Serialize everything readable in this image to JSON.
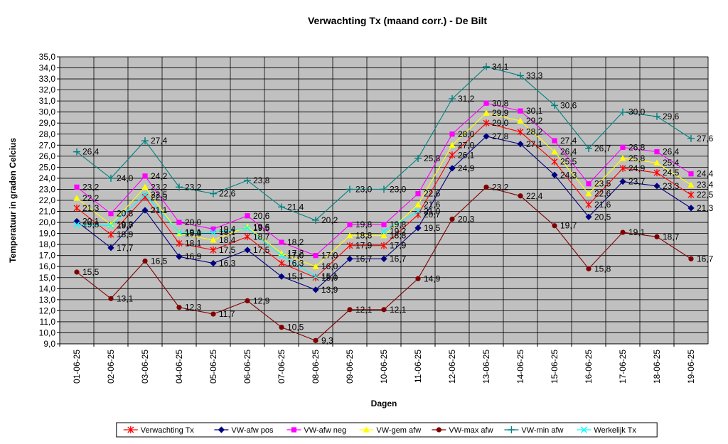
{
  "chart_data": {
    "type": "line",
    "title": "Verwachting Tx (maand corr.) - De Bilt",
    "xlabel": "Dagen",
    "ylabel": "Temperatuur in graden Celcius",
    "ylim": [
      9.0,
      35.0
    ],
    "ytick_step": 1.0,
    "grid": true,
    "plot_background": "#c0c0c0",
    "legend_position": "bottom",
    "categories": [
      "01-06-25",
      "02-06-25",
      "03-06-25",
      "04-06-25",
      "05-06-25",
      "06-06-25",
      "07-06-25",
      "08-06-25",
      "09-06-25",
      "10-06-25",
      "11-06-25",
      "12-06-25",
      "13-06-25",
      "14-06-25",
      "15-06-25",
      "16-06-25",
      "17-06-25",
      "18-06-25",
      "19-06-25"
    ],
    "series": [
      {
        "name": "Verwachting Tx",
        "color": "#ff0000",
        "marker": "star",
        "values": [
          21.3,
          18.9,
          22.3,
          18.1,
          17.5,
          18.7,
          16.3,
          15.0,
          17.9,
          17.9,
          20.7,
          26.1,
          29.0,
          28.2,
          25.5,
          21.6,
          24.9,
          24.5,
          22.5
        ]
      },
      {
        "name": "VW-afw pos",
        "color": "#000080",
        "marker": "diamond",
        "values": [
          20.1,
          17.7,
          21.1,
          16.9,
          16.3,
          17.5,
          15.1,
          13.9,
          16.7,
          16.7,
          19.5,
          24.9,
          27.8,
          27.1,
          24.3,
          20.5,
          23.7,
          23.3,
          21.3
        ]
      },
      {
        "name": "VW-afw neg",
        "color": "#ff00ff",
        "marker": "square",
        "values": [
          23.2,
          20.8,
          24.2,
          20.0,
          19.4,
          20.6,
          18.2,
          17.0,
          19.8,
          19.8,
          22.6,
          28.0,
          30.8,
          30.1,
          27.4,
          23.5,
          26.8,
          26.4,
          24.4
        ]
      },
      {
        "name": "VW-gem afw",
        "color": "#ffff00",
        "marker": "triangle",
        "values": [
          22.2,
          19.8,
          23.2,
          19.0,
          18.4,
          19.6,
          17.2,
          16.0,
          18.8,
          18.8,
          21.6,
          27.0,
          29.9,
          29.2,
          26.4,
          22.6,
          25.8,
          25.4,
          23.4
        ]
      },
      {
        "name": "VW-max afw",
        "color": "#800000",
        "marker": "circle",
        "values": [
          15.5,
          13.1,
          16.5,
          12.3,
          11.7,
          12.9,
          10.5,
          9.3,
          12.1,
          12.1,
          14.9,
          20.3,
          23.2,
          22.4,
          19.7,
          15.8,
          19.1,
          18.7,
          16.7
        ]
      },
      {
        "name": "VW-min afw",
        "color": "#008080",
        "marker": "plus",
        "values": [
          26.4,
          24.0,
          27.4,
          23.2,
          22.6,
          23.8,
          21.4,
          20.2,
          23.0,
          23.0,
          25.8,
          31.2,
          34.1,
          33.3,
          30.6,
          26.7,
          30.0,
          29.6,
          27.6
        ]
      },
      {
        "name": "Werkelijk Tx",
        "color": "#00ffff",
        "marker": "x",
        "values": [
          19.8,
          19.7,
          22.5,
          19.1,
          19.1,
          19.5,
          17.0,
          15.1,
          null,
          19.2,
          21.0,
          null,
          null,
          null,
          null,
          null,
          null,
          null,
          null
        ],
        "labels": [
          "19,8",
          "19,7",
          "22,5",
          "19,1",
          "19,1",
          "19,5",
          "17,0",
          "15,1",
          null,
          "19,2",
          "21,0",
          null,
          null,
          null,
          null,
          null,
          null,
          null,
          null
        ]
      }
    ]
  }
}
